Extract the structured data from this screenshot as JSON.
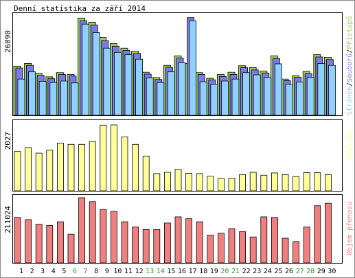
{
  "title": "Denní statistika za září 2014",
  "colors": {
    "hits": "#9acd5c",
    "files": "#7b7be6",
    "pages": "#8fd0ff",
    "visits": "#ffff99",
    "kbytes": "#f07f80",
    "weekend": "#2a9a2a",
    "weekday": "#000000",
    "frame": "#000000"
  },
  "chart_data": [
    {
      "type": "bar",
      "title": "Denní statistika za září 2014",
      "categories": [
        "1",
        "2",
        "3",
        "4",
        "5",
        "6",
        "7",
        "8",
        "9",
        "10",
        "11",
        "12",
        "13",
        "14",
        "15",
        "16",
        "17",
        "18",
        "19",
        "20",
        "21",
        "22",
        "23",
        "24",
        "25",
        "26",
        "27",
        "28",
        "29",
        "30"
      ],
      "weekend_days": [
        "6",
        "7",
        "13",
        "14",
        "20",
        "21",
        "27",
        "28"
      ],
      "ymax_label": "26090",
      "ylim": [
        0,
        26090
      ],
      "legend": [
        {
          "label": "Stránek",
          "color_key": "pages"
        },
        {
          "label": "Souborů",
          "color_key": "files"
        },
        {
          "label": "Přístupů",
          "color_key": "hits"
        }
      ],
      "legend_separator": "/",
      "series": [
        {
          "name": "Přístupů",
          "color_key": "hits",
          "values": [
            12900,
            13600,
            11000,
            10100,
            11200,
            10700,
            25500,
            24400,
            20400,
            18800,
            17600,
            16800,
            11300,
            9900,
            13100,
            15600,
            13600,
            11200,
            9700,
            10700,
            11300,
            13000,
            12500,
            11600,
            15600,
            9500,
            10400,
            11500,
            15900,
            15200
          ]
        },
        {
          "name": "Souborů",
          "color_key": "files",
          "values": [
            12400,
            13100,
            10500,
            9600,
            10700,
            10300,
            24800,
            23700,
            19600,
            18100,
            17000,
            16200,
            10800,
            9400,
            12600,
            15000,
            25600,
            10700,
            9300,
            10200,
            10700,
            12500,
            11900,
            11100,
            14900,
            9100,
            10000,
            10900,
            15300,
            14600
          ]
        },
        {
          "name": "Stránek",
          "color_key": "pages",
          "values": [
            9500,
            11400,
            8900,
            8600,
            9000,
            8500,
            23900,
            21700,
            17600,
            16500,
            15900,
            14700,
            9800,
            8600,
            11400,
            13800,
            24800,
            8800,
            8100,
            9000,
            9500,
            11200,
            10600,
            9900,
            13500,
            8100,
            8700,
            9900,
            13600,
            13100
          ]
        }
      ]
    },
    {
      "type": "bar",
      "categories": [
        "1",
        "2",
        "3",
        "4",
        "5",
        "6",
        "7",
        "8",
        "9",
        "10",
        "11",
        "12",
        "13",
        "14",
        "15",
        "16",
        "17",
        "18",
        "19",
        "20",
        "21",
        "22",
        "23",
        "24",
        "25",
        "26",
        "27",
        "28",
        "29",
        "30"
      ],
      "ymax_label": "2027",
      "ylim": [
        0,
        2027
      ],
      "legend": [
        {
          "label": "Návštěv",
          "color_key": "visits"
        }
      ],
      "series": [
        {
          "name": "Návštěv",
          "color_key": "visits",
          "values": [
            1210,
            1330,
            1160,
            1250,
            1470,
            1430,
            1430,
            1520,
            2020,
            2027,
            1660,
            1430,
            1070,
            530,
            570,
            660,
            540,
            530,
            450,
            380,
            390,
            500,
            570,
            480,
            550,
            500,
            440,
            560,
            560,
            500
          ]
        }
      ]
    },
    {
      "type": "bar",
      "categories": [
        "1",
        "2",
        "3",
        "4",
        "5",
        "6",
        "7",
        "8",
        "9",
        "10",
        "11",
        "12",
        "13",
        "14",
        "15",
        "16",
        "17",
        "18",
        "19",
        "20",
        "21",
        "22",
        "23",
        "24",
        "25",
        "26",
        "27",
        "28",
        "29",
        "30"
      ],
      "ymax_label": "211024",
      "ylim": [
        0,
        211024
      ],
      "legend": [
        {
          "label": "Objem přenosu",
          "color_key": "kbytes"
        }
      ],
      "series": [
        {
          "name": "Objem přenosu",
          "color_key": "kbytes",
          "values": [
            147000,
            140000,
            125000,
            121000,
            133000,
            93000,
            211024,
            198000,
            173000,
            167000,
            133000,
            116000,
            108000,
            108000,
            129000,
            149000,
            143000,
            133000,
            90000,
            96000,
            111000,
            101000,
            84000,
            149000,
            147000,
            80000,
            69000,
            116000,
            185000,
            193000
          ]
        }
      ]
    }
  ]
}
